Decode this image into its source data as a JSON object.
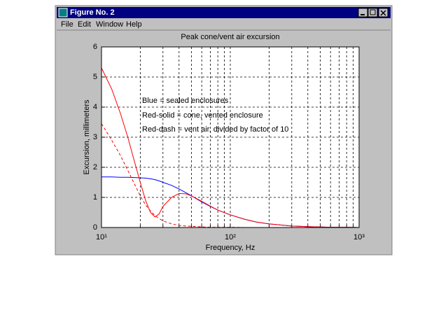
{
  "window": {
    "title": "Figure No. 2",
    "menu": [
      "File",
      "Edit",
      "Window",
      "Help"
    ]
  },
  "chart_data": {
    "type": "line",
    "title": "Peak cone/vent air excursion",
    "x_label": "Frequency, Hz",
    "y_label": "Excursion, millimeters",
    "annotations": [
      "Blue = sealed enclosures",
      "Red-solid = cone, vented enclosure",
      "Red-dash = vent air, divided by factor of 10"
    ],
    "x": [
      10,
      12,
      14,
      16,
      18,
      20,
      22,
      24,
      26,
      28,
      30,
      35,
      40,
      45,
      50,
      60,
      70,
      80,
      100,
      130,
      160,
      200,
      300,
      400,
      600,
      800,
      1000
    ],
    "series": [
      {
        "color": "#0000ff",
        "style": "solid",
        "values": [
          1.68,
          1.68,
          1.67,
          1.67,
          1.66,
          1.65,
          1.64,
          1.62,
          1.59,
          1.55,
          1.5,
          1.4,
          1.28,
          1.16,
          1.05,
          0.85,
          0.7,
          0.58,
          0.42,
          0.27,
          0.18,
          0.12,
          0.05,
          0.03,
          0.01,
          0.01,
          0
        ]
      },
      {
        "color": "#ff0000",
        "style": "solid",
        "values": [
          5.3,
          4.6,
          3.8,
          3.0,
          2.2,
          1.5,
          0.9,
          0.5,
          0.35,
          0.45,
          0.7,
          1.0,
          1.13,
          1.12,
          1.05,
          0.87,
          0.71,
          0.58,
          0.42,
          0.27,
          0.18,
          0.12,
          0.05,
          0.03,
          0.01,
          0.01,
          0
        ]
      },
      {
        "color": "#ff0000",
        "style": "dashed",
        "values": [
          3.45,
          2.9,
          2.4,
          1.9,
          1.45,
          1.05,
          0.75,
          0.55,
          0.4,
          0.3,
          0.22,
          0.12,
          0.07,
          0.05,
          0.04,
          0.02,
          0.01,
          0.01,
          0.01,
          0,
          0,
          0,
          0,
          0,
          0,
          0,
          0
        ]
      }
    ],
    "xscale": "log",
    "xlim": [
      10,
      1000
    ],
    "xticks": [
      {
        "value": 10,
        "label": "10¹"
      },
      {
        "value": 100,
        "label": "10²"
      },
      {
        "value": 1000,
        "label": "10³"
      }
    ],
    "xminor": [
      20,
      30,
      40,
      50,
      60,
      70,
      80,
      90,
      200,
      300,
      400,
      500,
      600,
      700,
      800,
      900
    ],
    "ylim": [
      0,
      6
    ],
    "yticks": [
      0,
      1,
      2,
      3,
      4,
      5,
      6
    ],
    "grid": true
  }
}
